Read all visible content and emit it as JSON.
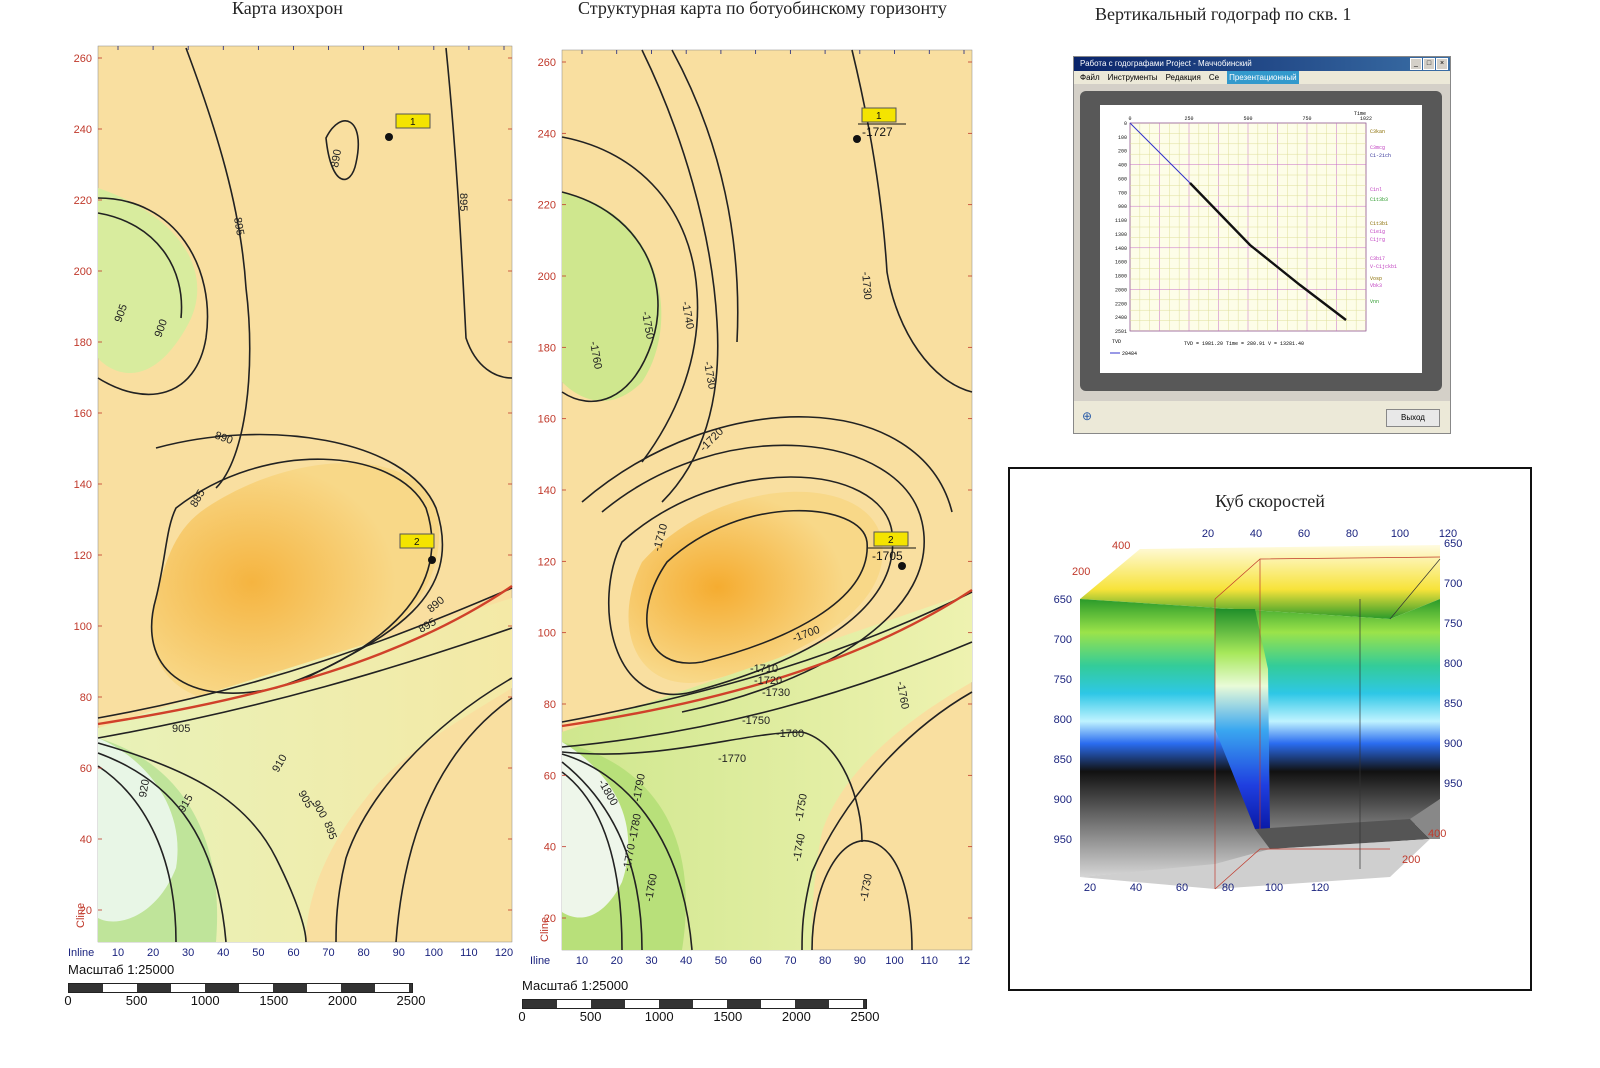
{
  "titles": {
    "isochron": "Карта изохрон",
    "structural": "Структурная карта по ботуобинскому горизонту",
    "hodograph": "Вертикальный годограф по скв. 1"
  },
  "map1": {
    "y_ticks": [
      "260",
      "240",
      "220",
      "200",
      "180",
      "160",
      "140",
      "120",
      "100",
      "80",
      "60",
      "40",
      "20"
    ],
    "x_ticks": [
      "10",
      "20",
      "30",
      "40",
      "50",
      "60",
      "70",
      "80",
      "90",
      "100",
      "110",
      "120"
    ],
    "x_axis_name": "Inline",
    "y_axis_name": "Cline",
    "contour_labels": [
      "890",
      "895",
      "895",
      "905",
      "900",
      "890",
      "885",
      "890",
      "895",
      "905",
      "910",
      "905",
      "900",
      "895",
      "920",
      "915"
    ],
    "wells": [
      {
        "label": "1"
      },
      {
        "label": "2"
      }
    ],
    "scale_title": "Масштаб 1:25000",
    "scale_labels": [
      "0",
      "500",
      "1000",
      "1500",
      "2000",
      "2500"
    ]
  },
  "map2": {
    "y_ticks": [
      "260",
      "240",
      "220",
      "200",
      "180",
      "160",
      "140",
      "120",
      "100",
      "80",
      "60",
      "40",
      "20"
    ],
    "x_ticks": [
      "10",
      "20",
      "30",
      "40",
      "50",
      "60",
      "70",
      "80",
      "90",
      "100",
      "110",
      "12"
    ],
    "x_axis_name": "Iline",
    "y_axis_name": "Cline",
    "contour_labels": [
      "-1760",
      "-1750",
      "-1740",
      "-1730",
      "-1720",
      "-1710",
      "-1730",
      "-1700",
      "-1710",
      "-1720",
      "-1730",
      "-1750",
      "-1760",
      "-1770",
      "-1760",
      "-1800",
      "-1790",
      "-1780",
      "-1770",
      "-1760",
      "-1750",
      "-1740",
      "-1730"
    ],
    "wells": [
      {
        "label": "1",
        "depth": "-1727"
      },
      {
        "label": "2",
        "depth": "-1705"
      }
    ],
    "scale_title": "Масштаб 1:25000",
    "scale_labels": [
      "0",
      "500",
      "1000",
      "1500",
      "2000",
      "2500"
    ]
  },
  "hodograph_window": {
    "window_title": "Работа с годографами  Project - Маччобинский",
    "menu": [
      "Файл",
      "Инструменты",
      "Редакция",
      "Се"
    ],
    "menu_highlight": "Презентационный",
    "x_ticks": [
      "0",
      "250",
      "500",
      "750",
      "1022"
    ],
    "time_label": "Time",
    "y_ticks": [
      "0",
      "100",
      "200",
      "400",
      "600",
      "700",
      "900",
      "1100",
      "1300",
      "1400",
      "1600",
      "1800",
      "2000",
      "2200",
      "2400",
      "2501"
    ],
    "tvd_label": "TVD",
    "horizons": [
      "C3kan",
      "C3mcg",
      "C1-2ich",
      "C1nl",
      "C1t3b3",
      "C1t3b1",
      "C1e1g",
      "C1jrg",
      "C3b17",
      "V-C1jckb1",
      "Vosp",
      "Vbk3",
      "Vnn"
    ],
    "status": "TVD = 1981.20 Time = 280.91 V = 13281.40",
    "legend": "20484",
    "exit_button": "Выход"
  },
  "velocity_cube": {
    "title": "Куб скоростей",
    "top_ticks": [
      "20",
      "40",
      "60",
      "80",
      "100",
      "120"
    ],
    "left_ticks": [
      "650",
      "700",
      "750",
      "800",
      "850",
      "900",
      "950"
    ],
    "right_ticks": [
      "650",
      "700",
      "750",
      "800",
      "850",
      "900",
      "950"
    ],
    "bottom_ticks": [
      "20",
      "40",
      "60",
      "80",
      "100",
      "120"
    ],
    "depth_ticks": [
      "400",
      "200"
    ]
  },
  "colors": {
    "tick_red": "#c0392b",
    "tick_blue": "#1a237e",
    "fault": "#d0412a",
    "well_label_bg": "#f4e400"
  }
}
